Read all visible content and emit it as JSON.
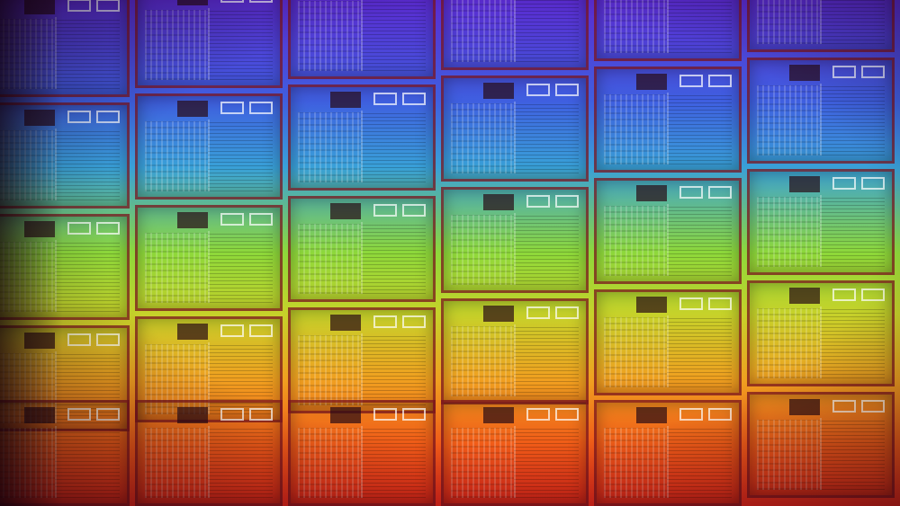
{
  "image": {
    "subject": "silicon-wafer-dies",
    "colors": {
      "top": "#5a2bd0",
      "upper": "#3f5fe0",
      "middle": "#8ed83a",
      "lower": "#f0a020",
      "bottom": "#e8261a",
      "die_border": "#781420"
    }
  }
}
